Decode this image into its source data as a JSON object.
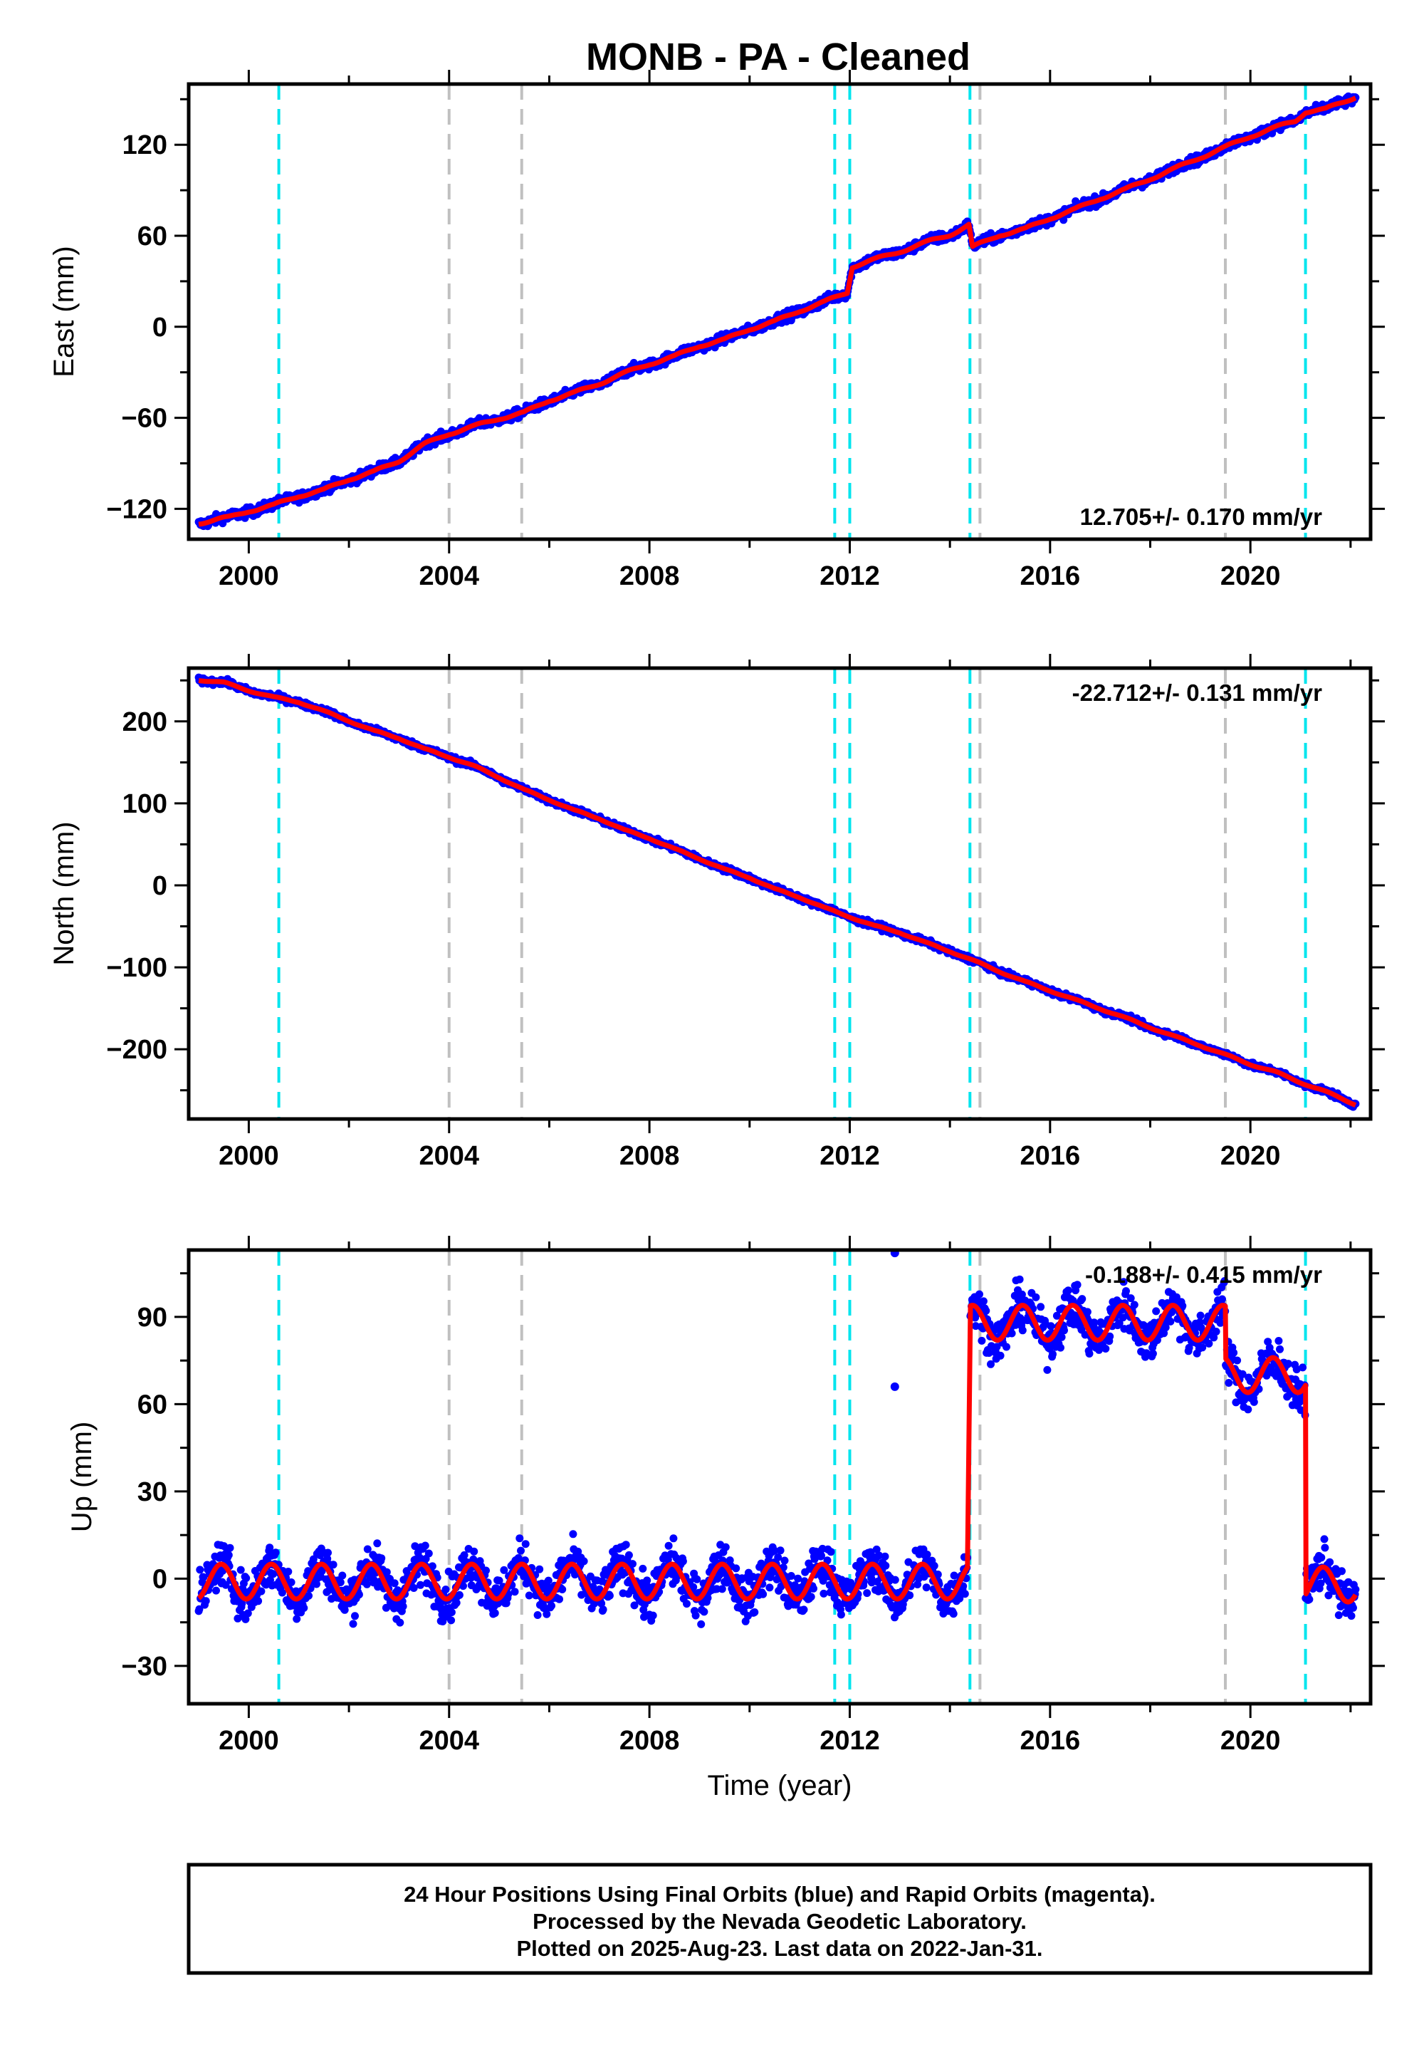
{
  "title": "MONB  - PA - Cleaned",
  "footer": {
    "lines": [
      "24 Hour Positions Using Final Orbits (blue) and Rapid Orbits (magenta).",
      "Processed by the Nevada Geodetic Laboratory.",
      "Plotted on 2025-Aug-23. Last data on 2022-Jan-31."
    ]
  },
  "colors": {
    "data": "#0000ff",
    "model": "#ff0000",
    "equipment_change": "#00e5ee",
    "other_event": "#c0c0c0",
    "frame": "#000000"
  },
  "chart_data": [
    {
      "type": "scatter",
      "panel": "east",
      "ylabel": "East (mm)",
      "xlabel": "",
      "xlim": [
        1998.8,
        2022.4
      ],
      "ylim": [
        -140,
        160
      ],
      "xticks": [
        2000,
        2004,
        2008,
        2012,
        2016,
        2020
      ],
      "yticks": [
        -120,
        -60,
        0,
        60,
        120
      ],
      "rate_label": "12.705+/- 0.170 mm/yr",
      "rate_position": "bottom-right",
      "grid": false,
      "events_cyan": [
        2000.6,
        2011.7,
        2012.0,
        2014.4,
        2021.1
      ],
      "events_gray": [
        2004.0,
        2005.45,
        2014.6,
        2019.5
      ],
      "series": [
        {
          "values": [
            [
              1999.0,
              -129
            ],
            [
              1999.6,
              -126
            ],
            [
              2000.0,
              -121
            ],
            [
              2000.5,
              -118
            ],
            [
              2001.0,
              -111
            ],
            [
              2001.5,
              -108
            ],
            [
              2002.0,
              -100
            ],
            [
              2002.5,
              -96
            ],
            [
              2003.0,
              -88
            ],
            [
              2003.5,
              -78
            ],
            [
              2004.0,
              -70
            ],
            [
              2004.5,
              -66
            ],
            [
              2005.0,
              -60
            ],
            [
              2005.5,
              -57
            ],
            [
              2006.0,
              -48
            ],
            [
              2006.5,
              -44
            ],
            [
              2007.0,
              -37
            ],
            [
              2007.5,
              -31
            ],
            [
              2008.0,
              -24
            ],
            [
              2008.5,
              -20
            ],
            [
              2009.0,
              -12
            ],
            [
              2009.5,
              -9
            ],
            [
              2010.0,
              -1
            ],
            [
              2010.5,
              3
            ],
            [
              2011.0,
              11
            ],
            [
              2011.5,
              16
            ],
            [
              2011.95,
              23
            ],
            [
              2012.05,
              40
            ],
            [
              2012.5,
              44
            ],
            [
              2013.0,
              50
            ],
            [
              2013.5,
              55
            ],
            [
              2014.0,
              61
            ],
            [
              2014.38,
              67
            ],
            [
              2014.45,
              52
            ],
            [
              2014.7,
              56
            ],
            [
              2015.0,
              61
            ],
            [
              2015.5,
              64
            ],
            [
              2016.0,
              72
            ],
            [
              2016.5,
              77
            ],
            [
              2017.0,
              85
            ],
            [
              2017.5,
              90
            ],
            [
              2018.0,
              98
            ],
            [
              2018.5,
              104
            ],
            [
              2019.0,
              112
            ],
            [
              2019.5,
              118
            ],
            [
              2020.0,
              126
            ],
            [
              2020.5,
              131
            ],
            [
              2020.9,
              136
            ],
            [
              2021.1,
              142
            ],
            [
              2021.5,
              143
            ],
            [
              2022.1,
              152
            ]
          ]
        }
      ]
    },
    {
      "type": "scatter",
      "panel": "north",
      "ylabel": "North (mm)",
      "xlabel": "",
      "xlim": [
        1998.8,
        2022.4
      ],
      "ylim": [
        -285,
        265
      ],
      "xticks": [
        2000,
        2004,
        2008,
        2012,
        2016,
        2020
      ],
      "yticks": [
        -200,
        -100,
        0,
        100,
        200
      ],
      "rate_label": "-22.712+/- 0.131 mm/yr",
      "rate_position": "top-right",
      "grid": false,
      "events_cyan": [
        2000.6,
        2011.7,
        2012.0,
        2014.4,
        2021.1
      ],
      "events_gray": [
        2004.0,
        2005.45,
        2014.6,
        2019.5
      ],
      "series": [
        {
          "values": [
            [
              1999.0,
              251
            ],
            [
              1999.5,
              247
            ],
            [
              2000.0,
              238
            ],
            [
              2000.5,
              229
            ],
            [
              2001.0,
              224
            ],
            [
              2001.5,
              212
            ],
            [
              2002.0,
              201
            ],
            [
              2002.5,
              188
            ],
            [
              2003.0,
              180
            ],
            [
              2003.5,
              166
            ],
            [
              2004.0,
              157
            ],
            [
              2004.5,
              145
            ],
            [
              2005.0,
              132
            ],
            [
              2005.5,
              116
            ],
            [
              2006.0,
              105
            ],
            [
              2006.5,
              91
            ],
            [
              2007.0,
              82
            ],
            [
              2007.5,
              67
            ],
            [
              2008.0,
              58
            ],
            [
              2008.5,
              44
            ],
            [
              2009.0,
              33
            ],
            [
              2009.5,
              19
            ],
            [
              2010.0,
              10
            ],
            [
              2010.5,
              -5
            ],
            [
              2011.0,
              -14
            ],
            [
              2011.5,
              -28
            ],
            [
              2012.0,
              -38
            ],
            [
              2012.5,
              -50
            ],
            [
              2013.0,
              -57
            ],
            [
              2013.5,
              -70
            ],
            [
              2014.0,
              -80
            ],
            [
              2014.5,
              -93
            ],
            [
              2015.0,
              -105
            ],
            [
              2015.5,
              -118
            ],
            [
              2016.0,
              -128
            ],
            [
              2016.5,
              -140
            ],
            [
              2017.0,
              -150
            ],
            [
              2017.5,
              -162
            ],
            [
              2018.0,
              -173
            ],
            [
              2018.5,
              -185
            ],
            [
              2019.0,
              -195
            ],
            [
              2019.5,
              -207
            ],
            [
              2020.0,
              -218
            ],
            [
              2020.5,
              -228
            ],
            [
              2021.0,
              -240
            ],
            [
              2021.5,
              -252
            ],
            [
              2022.1,
              -267
            ]
          ]
        }
      ]
    },
    {
      "type": "scatter",
      "panel": "up",
      "ylabel": "Up (mm)",
      "xlabel": "Time (year)",
      "xlim": [
        1998.8,
        2022.4
      ],
      "ylim": [
        -43,
        113
      ],
      "xticks": [
        2000,
        2004,
        2008,
        2012,
        2016,
        2020
      ],
      "yticks": [
        -30,
        0,
        30,
        60,
        90
      ],
      "rate_label": "-0.188+/- 0.415 mm/yr",
      "rate_position": "top-right",
      "grid": false,
      "events_cyan": [
        2000.6,
        2011.7,
        2012.0,
        2014.4,
        2021.1
      ],
      "events_gray": [
        2004.0,
        2005.45,
        2014.6,
        2019.5
      ],
      "segments": [
        {
          "start": 1999.0,
          "end": 2014.35,
          "offset_mm": -1,
          "amplitude_mm": 6
        },
        {
          "start": 2014.4,
          "end": 2019.5,
          "offset_mm": 88,
          "amplitude_mm": 6
        },
        {
          "start": 2019.5,
          "end": 2021.1,
          "offset_mm": 70,
          "amplitude_mm": 6
        },
        {
          "start": 2021.1,
          "end": 2022.1,
          "offset_mm": -2,
          "amplitude_mm": 6
        }
      ],
      "outliers": [
        [
          2012.9,
          112
        ],
        [
          2012.9,
          66
        ]
      ]
    }
  ]
}
